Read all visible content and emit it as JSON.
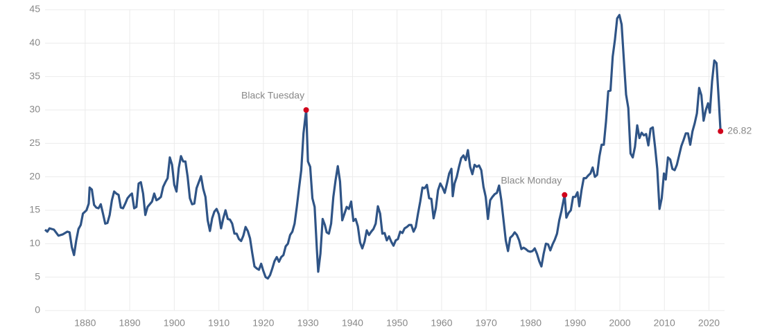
{
  "chart_data": {
    "type": "line",
    "x": [
      1871,
      1871.5,
      1872,
      1873,
      1874,
      1875,
      1876,
      1876.5,
      1877,
      1877.5,
      1878,
      1878.5,
      1879,
      1879.5,
      1880.3,
      1880.8,
      1881,
      1881.5,
      1882,
      1882.5,
      1883,
      1883.5,
      1884,
      1884.5,
      1885,
      1885.5,
      1886,
      1886.5,
      1887,
      1887.5,
      1888,
      1888.5,
      1889,
      1889.5,
      1890,
      1890.5,
      1891,
      1891.5,
      1892,
      1892.5,
      1893,
      1893.5,
      1894,
      1895,
      1895.5,
      1896,
      1896.5,
      1897,
      1897.5,
      1898,
      1898.5,
      1899,
      1899.5,
      1900,
      1900.5,
      1901,
      1901.5,
      1902,
      1902.5,
      1903,
      1903.5,
      1904,
      1904.5,
      1905,
      1905.5,
      1906,
      1906.5,
      1907,
      1907.5,
      1908,
      1908.5,
      1909,
      1909.5,
      1910,
      1910.5,
      1911,
      1911.5,
      1912,
      1912.5,
      1913,
      1913.5,
      1914,
      1914.5,
      1915,
      1915.5,
      1916,
      1916.5,
      1917,
      1917.5,
      1918,
      1918.5,
      1919,
      1919.5,
      1920,
      1920.5,
      1921,
      1921.5,
      1922,
      1922.5,
      1923,
      1923.5,
      1924,
      1924.5,
      1925,
      1925.5,
      1926,
      1926.5,
      1927,
      1927.5,
      1928,
      1928.5,
      1929,
      1929.6,
      1930,
      1930.5,
      1931,
      1931.5,
      1932,
      1932.3,
      1932.8,
      1933.3,
      1933.8,
      1934.2,
      1934.7,
      1935.2,
      1935.7,
      1936.2,
      1936.7,
      1937.2,
      1937.7,
      1938.2,
      1938.7,
      1939.2,
      1939.7,
      1940.2,
      1940.7,
      1941.2,
      1941.7,
      1942.2,
      1942.7,
      1943.2,
      1943.7,
      1944.2,
      1944.7,
      1945.2,
      1945.7,
      1946.2,
      1946.7,
      1947.2,
      1947.7,
      1948.2,
      1948.7,
      1949.2,
      1949.7,
      1950.2,
      1950.7,
      1951.2,
      1951.7,
      1952.2,
      1952.7,
      1953.2,
      1953.7,
      1954.2,
      1954.7,
      1955.2,
      1955.7,
      1956.2,
      1956.7,
      1957.2,
      1957.7,
      1958.2,
      1958.7,
      1959.2,
      1959.7,
      1960.2,
      1960.7,
      1961.2,
      1961.7,
      1962.2,
      1962.5,
      1962.9,
      1963.4,
      1963.9,
      1964.4,
      1964.9,
      1965.4,
      1965.9,
      1966.4,
      1966.9,
      1967.4,
      1967.9,
      1968.4,
      1968.9,
      1969.4,
      1969.9,
      1970.4,
      1970.9,
      1971.4,
      1971.9,
      1972.4,
      1972.9,
      1973.4,
      1973.9,
      1974.4,
      1974.9,
      1975.4,
      1975.9,
      1976.4,
      1976.9,
      1977.4,
      1977.9,
      1978.4,
      1978.9,
      1979.4,
      1979.9,
      1980.4,
      1980.9,
      1981.4,
      1981.9,
      1982.4,
      1982.9,
      1983.4,
      1983.9,
      1984.4,
      1984.9,
      1985.4,
      1985.9,
      1986.4,
      1986.9,
      1987.6,
      1988,
      1988.5,
      1989,
      1989.5,
      1990,
      1990.5,
      1990.9,
      1991.4,
      1991.9,
      1992.4,
      1992.9,
      1993.4,
      1993.9,
      1994.4,
      1994.9,
      1995.4,
      1995.9,
      1996.4,
      1996.9,
      1997.4,
      1997.9,
      1998.4,
      1998.9,
      1999.4,
      1999.9,
      2000.4,
      2000.9,
      2001.4,
      2001.9,
      2002.4,
      2002.9,
      2003.4,
      2003.9,
      2004.4,
      2004.9,
      2005.4,
      2005.9,
      2006.4,
      2006.9,
      2007.4,
      2007.9,
      2008.4,
      2008.9,
      2009.4,
      2009.9,
      2010.3,
      2010.8,
      2011.3,
      2011.8,
      2012.3,
      2012.8,
      2013.3,
      2013.8,
      2014.3,
      2014.8,
      2015.3,
      2015.8,
      2016.3,
      2016.8,
      2017.3,
      2017.8,
      2018.3,
      2018.8,
      2019.3,
      2019.8,
      2020.2,
      2020.7,
      2021.2,
      2021.7,
      2022.2,
      2022.6
    ],
    "series": [
      {
        "color": "#2f5486",
        "values": [
          12.1,
          11.8,
          12.3,
          12.1,
          11.2,
          11.4,
          11.8,
          11.7,
          9.5,
          8.3,
          10.5,
          12.2,
          12.8,
          14.5,
          15.0,
          16.0,
          18.4,
          18.1,
          15.8,
          15.4,
          15.3,
          15.9,
          14.5,
          13.0,
          13.1,
          14.3,
          16.5,
          17.8,
          17.5,
          17.3,
          15.4,
          15.3,
          16.0,
          16.8,
          17.2,
          17.5,
          15.3,
          15.5,
          19.0,
          19.2,
          17.5,
          14.3,
          15.5,
          16.3,
          17.5,
          16.5,
          16.7,
          17.0,
          18.5,
          19.2,
          19.8,
          22.9,
          21.8,
          18.8,
          17.8,
          21.3,
          23.1,
          22.3,
          22.3,
          20.0,
          16.8,
          15.9,
          16.0,
          18.3,
          19.2,
          20.1,
          18.2,
          17.0,
          13.5,
          11.9,
          13.8,
          14.8,
          15.2,
          14.4,
          12.3,
          13.8,
          15.0,
          13.7,
          13.6,
          13.0,
          11.5,
          11.5,
          10.7,
          10.4,
          11.2,
          12.5,
          11.9,
          10.8,
          8.6,
          6.6,
          6.3,
          6.1,
          7.0,
          5.9,
          5.0,
          4.8,
          5.3,
          6.3,
          7.4,
          8.0,
          7.3,
          8.0,
          8.3,
          9.6,
          10.0,
          11.3,
          11.8,
          13.0,
          15.5,
          18.3,
          21.0,
          26.5,
          30.0,
          22.3,
          21.5,
          16.8,
          15.5,
          9.2,
          5.8,
          8.5,
          13.7,
          12.8,
          11.7,
          11.5,
          13.0,
          17.0,
          19.5,
          21.6,
          19.3,
          13.5,
          14.5,
          15.5,
          15.2,
          16.3,
          13.4,
          13.7,
          12.6,
          10.2,
          9.3,
          10.3,
          12.0,
          11.3,
          11.8,
          12.2,
          13.0,
          15.6,
          14.5,
          11.5,
          11.6,
          10.5,
          11.1,
          10.3,
          9.7,
          10.5,
          10.7,
          11.8,
          11.6,
          12.3,
          12.5,
          12.8,
          12.8,
          11.8,
          12.5,
          14.5,
          16.3,
          18.4,
          18.3,
          18.8,
          16.8,
          16.7,
          13.8,
          15.3,
          18.0,
          19.0,
          18.4,
          17.6,
          19.0,
          20.5,
          21.2,
          17.1,
          19.0,
          20.0,
          21.5,
          22.8,
          23.2,
          22.5,
          24.0,
          21.5,
          20.4,
          21.8,
          21.5,
          21.7,
          21.0,
          18.5,
          17.0,
          13.7,
          16.5,
          17.0,
          17.4,
          17.6,
          18.7,
          16.5,
          13.5,
          10.5,
          8.9,
          10.9,
          11.2,
          11.7,
          11.3,
          10.5,
          9.2,
          9.4,
          9.2,
          8.9,
          8.8,
          8.9,
          9.3,
          8.5,
          7.4,
          6.6,
          8.5,
          10.0,
          9.9,
          9.0,
          9.9,
          10.6,
          11.5,
          13.5,
          14.9,
          17.3,
          13.9,
          14.6,
          15.0,
          17.0,
          17.0,
          17.7,
          15.6,
          18.0,
          19.8,
          19.8,
          20.2,
          20.5,
          21.4,
          20.0,
          20.3,
          23.0,
          24.8,
          24.8,
          28.3,
          32.8,
          32.9,
          38.0,
          40.5,
          43.7,
          44.2,
          42.8,
          37.5,
          32.3,
          30.3,
          23.5,
          22.9,
          24.5,
          27.7,
          25.8,
          26.6,
          26.2,
          26.4,
          24.7,
          27.2,
          27.4,
          24.5,
          21.2,
          15.2,
          16.8,
          20.5,
          19.6,
          22.9,
          22.6,
          21.2,
          21.0,
          21.8,
          23.2,
          24.6,
          25.5,
          26.5,
          26.5,
          24.8,
          26.8,
          28.0,
          29.5,
          33.3,
          32.2,
          28.4,
          30.0,
          31.0,
          29.6,
          34.3,
          37.4,
          37.0,
          31.5,
          26.82
        ]
      }
    ],
    "annotations": [
      {
        "text": "Black Tuesday",
        "x": 1929.6,
        "y": 30.0
      },
      {
        "text": "Black Monday",
        "x": 1987.6,
        "y": 17.3
      },
      {
        "text": "26.82",
        "x": 2022.6,
        "y": 26.82
      }
    ],
    "marker_color": "#d0021b",
    "xlim": [
      1871,
      2023.5
    ],
    "xticks": [
      1880,
      1890,
      1900,
      1910,
      1920,
      1930,
      1940,
      1950,
      1960,
      1970,
      1980,
      1990,
      2000,
      2010,
      2020
    ],
    "ylim": [
      0,
      45
    ],
    "yticks": [
      0,
      5,
      10,
      15,
      20,
      25,
      30,
      35,
      40,
      45
    ],
    "grid": true
  }
}
